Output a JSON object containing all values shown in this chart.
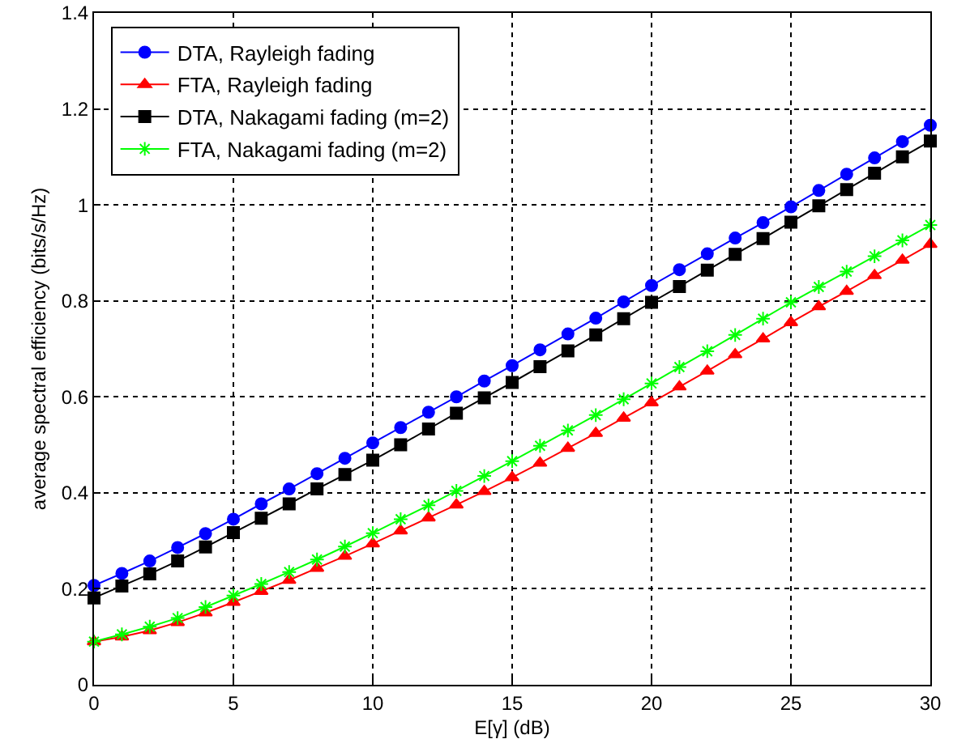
{
  "chart_data": {
    "type": "line",
    "xlabel": "E[γ] (dB)",
    "ylabel": "average spectral efficiency (bits/s/Hz)",
    "x": [
      0,
      1,
      2,
      3,
      4,
      5,
      6,
      7,
      8,
      9,
      10,
      11,
      12,
      13,
      14,
      15,
      16,
      17,
      18,
      19,
      20,
      21,
      22,
      23,
      24,
      25,
      26,
      27,
      28,
      29,
      30
    ],
    "series": [
      {
        "name": "DTA, Rayleigh fading",
        "color": "#0000ff",
        "marker": "circle",
        "values": [
          0.207,
          0.232,
          0.258,
          0.286,
          0.315,
          0.345,
          0.377,
          0.408,
          0.44,
          0.472,
          0.504,
          0.536,
          0.568,
          0.6,
          0.633,
          0.665,
          0.698,
          0.731,
          0.764,
          0.798,
          0.832,
          0.865,
          0.898,
          0.931,
          0.963,
          0.996,
          1.03,
          1.064,
          1.098,
          1.132,
          1.166
        ]
      },
      {
        "name": "FTA, Rayleigh fading",
        "color": "#ff0000",
        "marker": "triangle",
        "values": [
          0.09,
          0.1,
          0.113,
          0.13,
          0.15,
          0.172,
          0.195,
          0.218,
          0.243,
          0.268,
          0.294,
          0.321,
          0.348,
          0.375,
          0.403,
          0.432,
          0.462,
          0.493,
          0.524,
          0.556,
          0.588,
          0.621,
          0.654,
          0.688,
          0.721,
          0.755,
          0.788,
          0.82,
          0.853,
          0.885,
          0.918
        ]
      },
      {
        "name": "DTA, Nakagami fading (m=2)",
        "color": "#000000",
        "marker": "square",
        "values": [
          0.181,
          0.206,
          0.231,
          0.258,
          0.287,
          0.317,
          0.347,
          0.377,
          0.408,
          0.438,
          0.468,
          0.5,
          0.533,
          0.566,
          0.598,
          0.63,
          0.663,
          0.696,
          0.729,
          0.763,
          0.797,
          0.83,
          0.864,
          0.897,
          0.93,
          0.964,
          0.998,
          1.032,
          1.066,
          1.1,
          1.133
        ]
      },
      {
        "name": "FTA, Nakagami fading (m=2)",
        "color": "#00ff00",
        "marker": "cross",
        "values": [
          0.09,
          0.105,
          0.121,
          0.139,
          0.162,
          0.186,
          0.21,
          0.235,
          0.261,
          0.288,
          0.316,
          0.345,
          0.374,
          0.404,
          0.435,
          0.466,
          0.498,
          0.53,
          0.562,
          0.595,
          0.628,
          0.662,
          0.695,
          0.729,
          0.763,
          0.797,
          0.829,
          0.861,
          0.893,
          0.926,
          0.958
        ]
      }
    ],
    "xlim": [
      0,
      30
    ],
    "xticks": [
      0,
      5,
      10,
      15,
      20,
      25,
      30
    ],
    "ylim": [
      0,
      1.4
    ],
    "yticks": [
      0,
      0.2,
      0.4,
      0.6,
      0.8,
      1,
      1.2,
      1.4
    ],
    "grid": true,
    "legend": "top left",
    "line_style": "solid"
  }
}
